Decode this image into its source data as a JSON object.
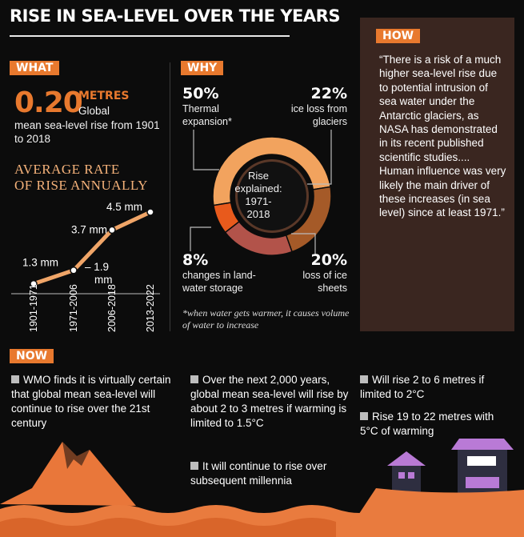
{
  "title": "RISE IN SEA-LEVEL OVER THE YEARS",
  "what": {
    "tag": "WHAT",
    "big_value": "0.20",
    "unit": "METRES",
    "line1": "Global",
    "line2": "mean sea-level rise from 1901 to 2018",
    "avg_title_1": "AVERAGE RATE",
    "avg_title_2": "OF RISE ANNUALLY",
    "points": [
      {
        "period": "1901-1971",
        "value": 1.3,
        "label": "1.3 mm"
      },
      {
        "period": "1971-2006",
        "value": 1.9,
        "label_a": "1.9",
        "label_b": "mm"
      },
      {
        "period": "2006-2018",
        "value": 3.7,
        "label": "3.7 mm"
      },
      {
        "period": "2013-2022",
        "value": 4.5,
        "label": "4.5 mm"
      }
    ]
  },
  "why": {
    "tag": "WHY",
    "center_1": "Rise",
    "center_2": "explained:",
    "center_3": "1971-",
    "center_4": "2018",
    "segments": [
      {
        "pct": "50%",
        "l1": "Thermal",
        "l2": "expansion*",
        "value": 50,
        "color": "#f2a35e"
      },
      {
        "pct": "22%",
        "l1": "ice loss from",
        "l2": "glaciers",
        "value": 22,
        "color": "#a55a28"
      },
      {
        "pct": "20%",
        "l1": "loss of ice",
        "l2": "sheets",
        "value": 20,
        "color": "#b2534a"
      },
      {
        "pct": "8%",
        "l1": "changes in land-",
        "l2": "water storage",
        "value": 8,
        "color": "#e85a1c"
      }
    ],
    "note": "*when water gets warmer, it causes volume of water to increase"
  },
  "how": {
    "tag": "HOW",
    "quote": "“There is a risk of a much higher sea-level rise due to potential intrusion of sea water under the Antarctic glaciers, as NASA has demonstrated in its recent published scientific studies.... Human influence was very likely the main driver of these increases (in sea level) since at least 1971.”"
  },
  "now": {
    "tag": "NOW",
    "b1": "WMO finds it is virtually certain that global mean sea-level will continue to rise over the 21st century",
    "b2": "Over the next 2,000 years, global mean sea-level will rise by about 2 to 3 metres if warming is limited to 1.5°C",
    "b3": "It will continue to rise over subsequent millennia",
    "b4": "Will rise 2 to 6 metres if limited to 2°C",
    "b5": "Rise 19 to 22 metres with 5°C of warming"
  },
  "colors": {
    "accent": "#e8792e",
    "how_bg": "#3a2620",
    "roof": "#b97ad6",
    "wave": "#e97b3e"
  }
}
